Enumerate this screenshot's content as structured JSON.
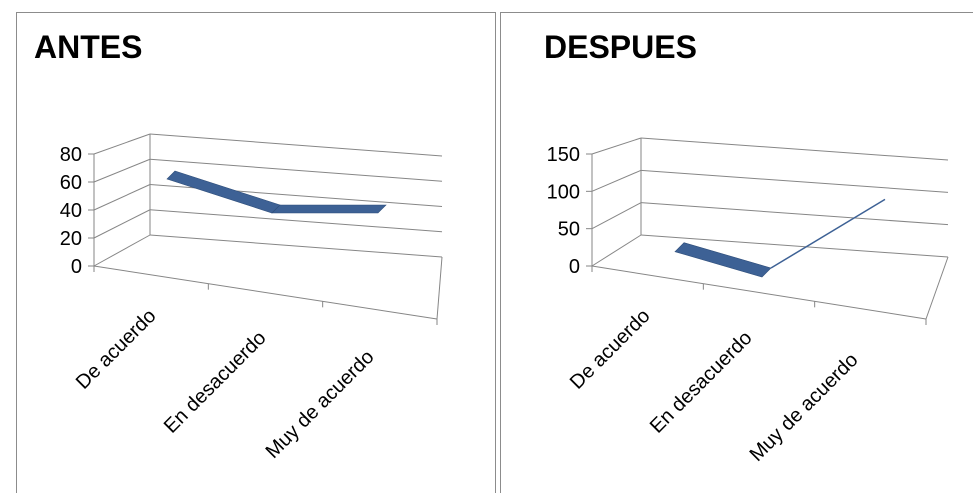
{
  "chart_data": [
    {
      "type": "line",
      "title": "ANTES",
      "categories": [
        "De acuerdo",
        "En desacuerdo",
        "Muy de acuerdo"
      ],
      "series": [
        {
          "values": [
            70,
            40,
            40
          ]
        }
      ],
      "ylim": [
        0,
        80
      ],
      "yticks": [
        "0",
        "20",
        "40",
        "60",
        "80"
      ],
      "grid": true,
      "style": "3d-ribbon",
      "colors": {
        "series": "#3d6195",
        "axis": "#868686",
        "grid": "#868686"
      }
    },
    {
      "type": "line",
      "title": "DESPUES",
      "categories": [
        "De acuerdo",
        "En desacuerdo",
        "Muy de acuerdo"
      ],
      "series": [
        {
          "values": [
            25,
            0,
            125
          ]
        }
      ],
      "ylim": [
        0,
        150
      ],
      "yticks": [
        "0",
        "50",
        "100",
        "150"
      ],
      "grid": true,
      "style": "3d-ribbon",
      "colors": {
        "series": "#3d6195",
        "axis": "#868686",
        "grid": "#868686"
      }
    }
  ]
}
